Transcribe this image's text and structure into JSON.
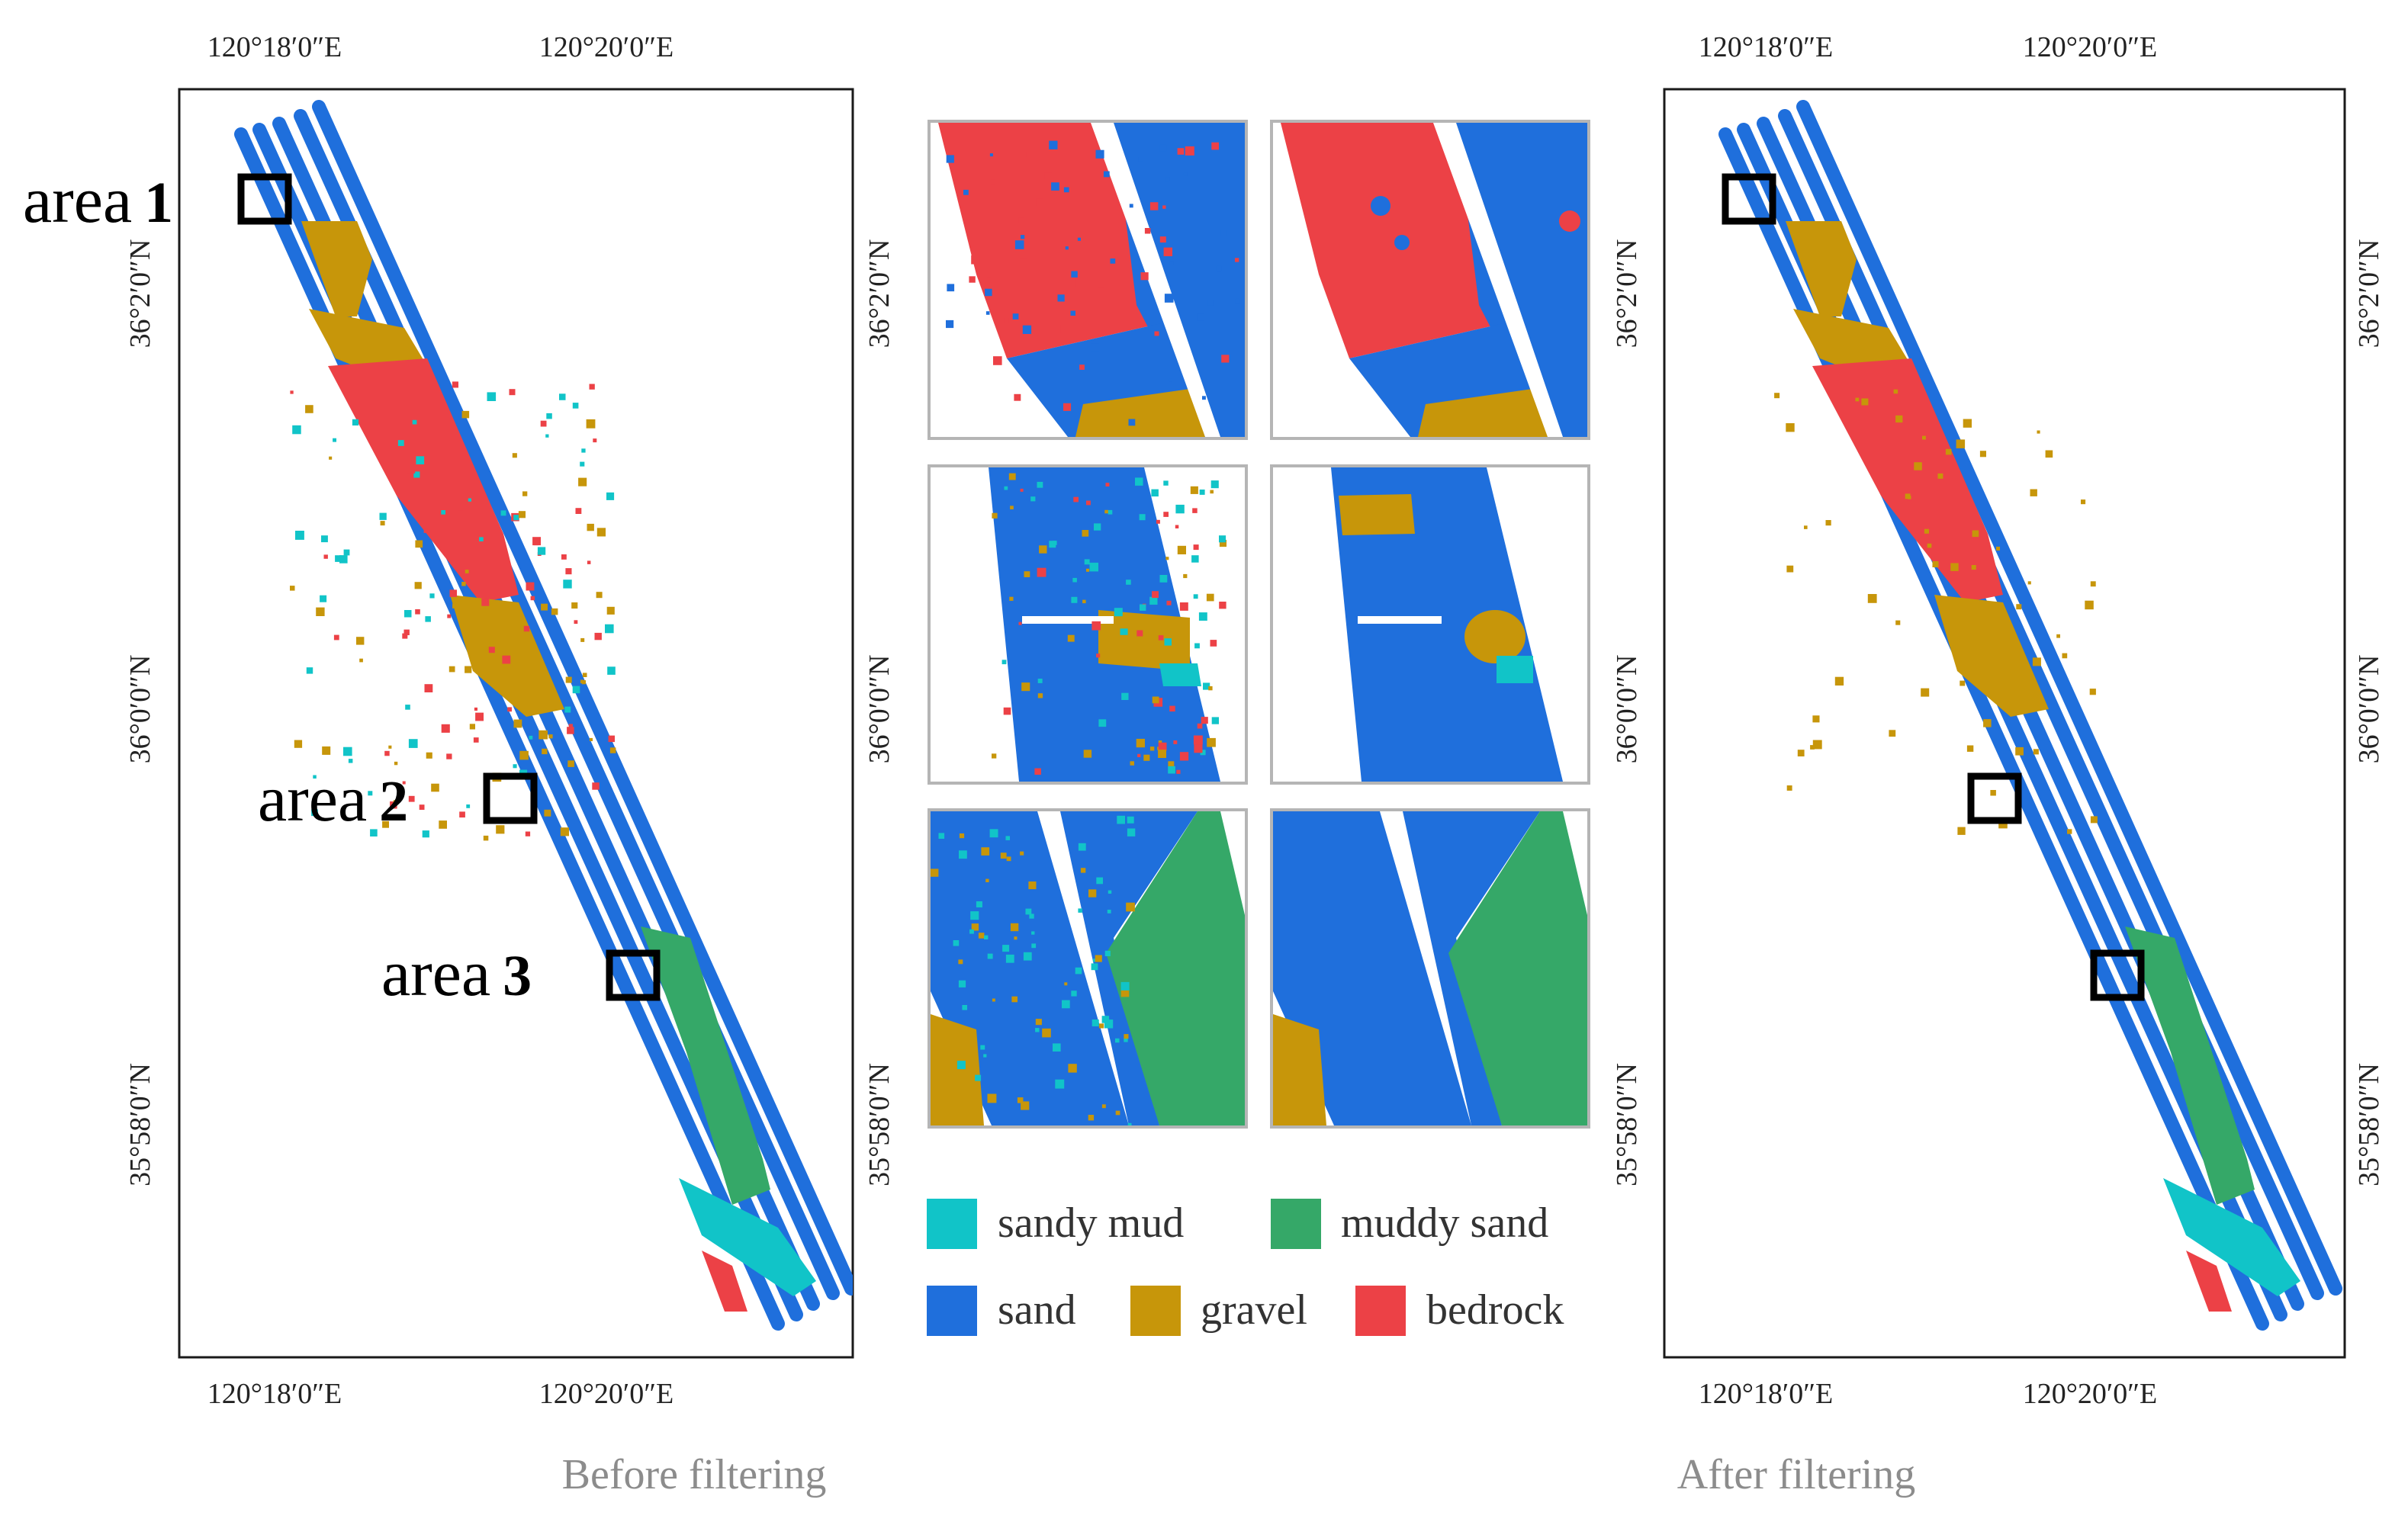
{
  "colors": {
    "sandy_mud": "#11c4c8",
    "muddy_sand": "#35a868",
    "sand": "#1f6fdc",
    "gravel": "#c7960a",
    "bedrock": "#ec4146"
  },
  "maps": {
    "before": {
      "caption": "Before filtering",
      "x_ticks": [
        "120°18′0″E",
        "120°20′0″E"
      ],
      "y_ticks": [
        "36°2′0″N",
        "36°0′0″N",
        "35°58′0″N"
      ],
      "area_labels": [
        {
          "word": "area",
          "number": "1"
        },
        {
          "word": "area",
          "number": "2"
        },
        {
          "word": "area",
          "number": "3"
        }
      ]
    },
    "after": {
      "caption": "After filtering",
      "x_ticks": [
        "120°18′0″E",
        "120°20′0″E"
      ],
      "y_ticks": [
        "36°2′0″N",
        "36°0′0″N",
        "35°58′0″N"
      ]
    }
  },
  "legend": [
    {
      "label": "sandy mud",
      "color": "#11c4c8"
    },
    {
      "label": "muddy sand",
      "color": "#35a868"
    },
    {
      "label": "sand",
      "color": "#1f6fdc"
    },
    {
      "label": "gravel",
      "color": "#c7960a"
    },
    {
      "label": "bedrock",
      "color": "#ec4146"
    }
  ],
  "middle_y_ticks": [
    "36°2′0″N",
    "36°0′0″N",
    "35°58′0″N"
  ]
}
